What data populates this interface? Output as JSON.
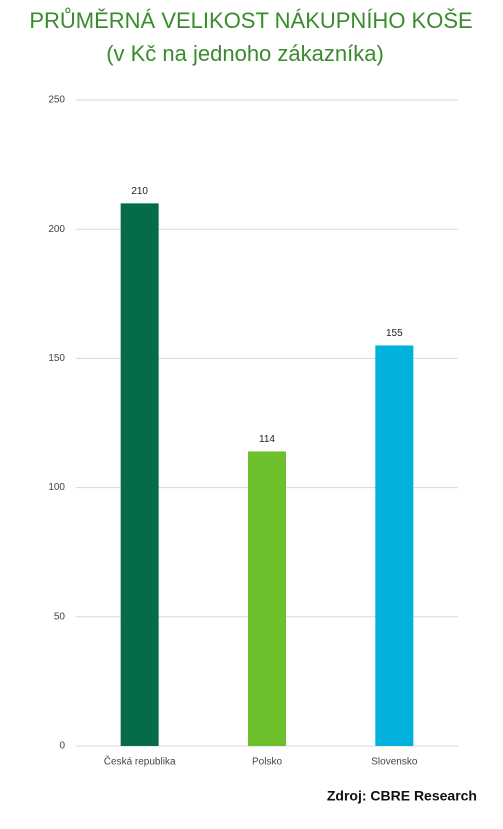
{
  "chart_data": {
    "type": "bar",
    "title": "PRŮMĚRNÁ VELIKOST NÁKUPNÍHO KOŠE",
    "subtitle": "(v Kč na jednoho zákazníka)",
    "source": "Zdroj: CBRE Research",
    "categories": [
      "Česká republika",
      "Polsko",
      "Slovensko"
    ],
    "values": [
      210,
      114,
      155
    ],
    "colors": [
      "#066b4a",
      "#6ebf2c",
      "#00b1dd"
    ],
    "ylim": [
      0,
      250
    ],
    "yticks": [
      0,
      50,
      100,
      150,
      200,
      250
    ],
    "grid": true
  }
}
